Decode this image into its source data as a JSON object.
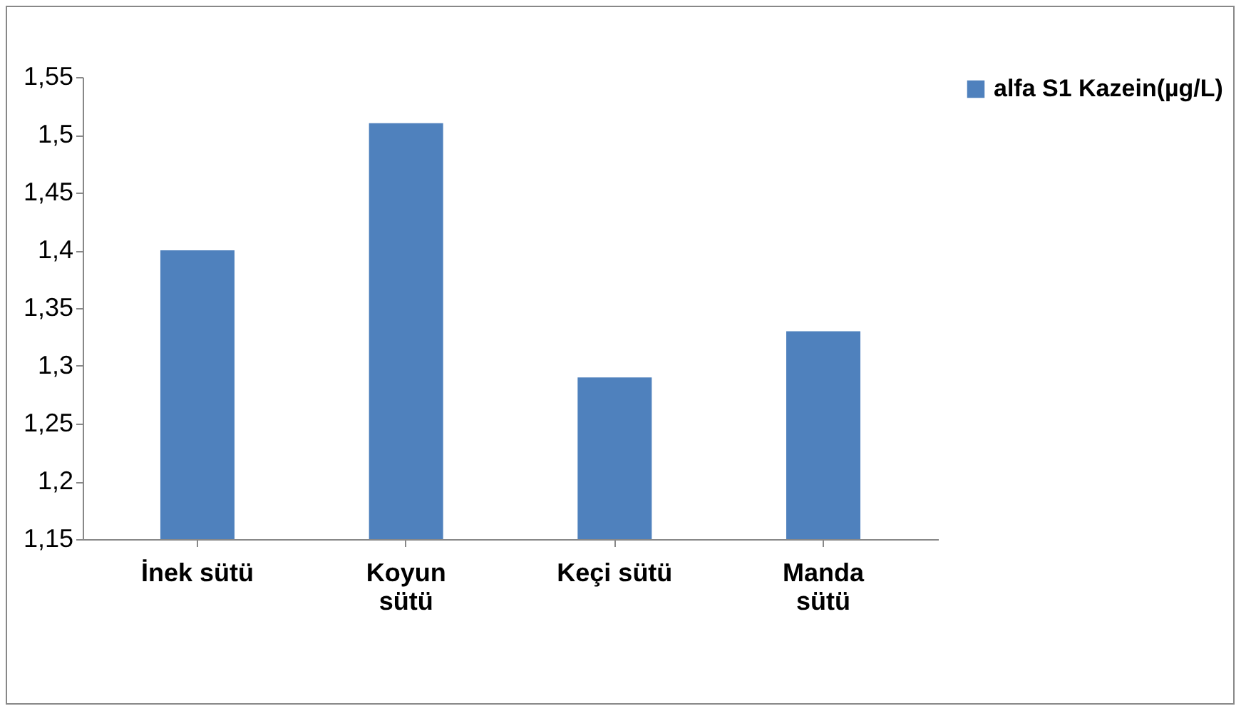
{
  "chart_data": {
    "type": "bar",
    "categories": [
      "İnek sütü",
      "Koyun sütü",
      "Keçi sütü",
      "Manda sütü"
    ],
    "series": [
      {
        "name": "alfa S1 Kazein(µg/L)",
        "color": "#4f81bd",
        "values": [
          1.4,
          1.51,
          1.29,
          1.33
        ]
      }
    ],
    "ylim": [
      1.15,
      1.55
    ],
    "yticks": [
      {
        "value": 1.15,
        "label": "1,15"
      },
      {
        "value": 1.2,
        "label": "1,2"
      },
      {
        "value": 1.25,
        "label": "1,25"
      },
      {
        "value": 1.3,
        "label": "1,3"
      },
      {
        "value": 1.35,
        "label": "1,35"
      },
      {
        "value": 1.4,
        "label": "1,4"
      },
      {
        "value": 1.45,
        "label": "1,45"
      },
      {
        "value": 1.5,
        "label": "1,5"
      },
      {
        "value": 1.55,
        "label": "1,55"
      }
    ],
    "legend": "right"
  }
}
